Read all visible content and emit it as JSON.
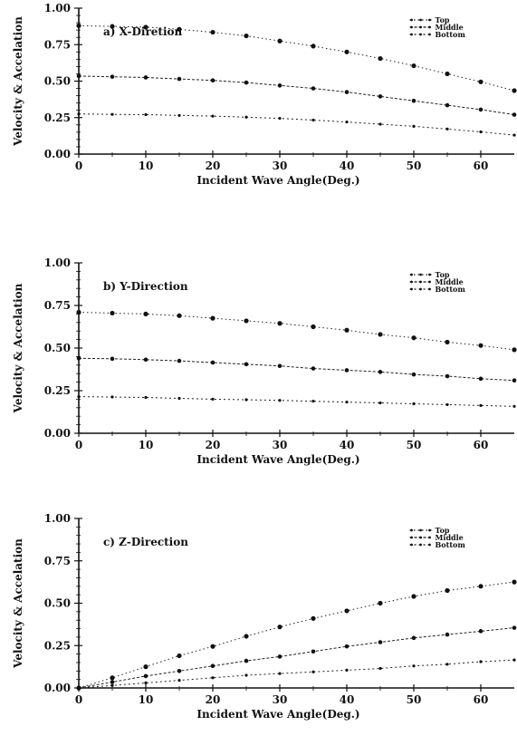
{
  "chart_data": [
    {
      "type": "line",
      "title": "a) X-Diretion",
      "xlabel": "Incident Wave Angle(Deg.)",
      "ylabel": "Velocity & Accelation",
      "xlim": [
        0,
        65
      ],
      "ylim": [
        0,
        1
      ],
      "xticks": [
        0,
        10,
        20,
        30,
        40,
        50,
        60
      ],
      "xtick_labels": [
        "0",
        "10",
        "20",
        "30",
        "40",
        "50",
        "60"
      ],
      "yticks": [
        0,
        0.25,
        0.5,
        0.75,
        1.0
      ],
      "ytick_labels": [
        "0.00",
        "0.25",
        "0.50",
        "0.75",
        "1.00"
      ],
      "grid": false,
      "legend_position": "top-right",
      "x": [
        0,
        5,
        10,
        15,
        20,
        25,
        30,
        35,
        40,
        45,
        50,
        55,
        60,
        65
      ],
      "series": [
        {
          "name": "Top",
          "values": [
            0.88,
            0.875,
            0.87,
            0.855,
            0.835,
            0.81,
            0.775,
            0.74,
            0.7,
            0.655,
            0.605,
            0.55,
            0.495,
            0.435
          ]
        },
        {
          "name": "Middle",
          "values": [
            0.535,
            0.53,
            0.525,
            0.515,
            0.505,
            0.49,
            0.47,
            0.45,
            0.425,
            0.395,
            0.365,
            0.335,
            0.305,
            0.27
          ]
        },
        {
          "name": "Bottom",
          "values": [
            0.275,
            0.272,
            0.27,
            0.265,
            0.26,
            0.253,
            0.245,
            0.233,
            0.22,
            0.205,
            0.19,
            0.172,
            0.152,
            0.13
          ]
        }
      ]
    },
    {
      "type": "line",
      "title": "b) Y-Direction",
      "xlabel": "Incident Wave Angle(Deg.)",
      "ylabel": "Velocity & Accelation",
      "xlim": [
        0,
        65
      ],
      "ylim": [
        0,
        1
      ],
      "xticks": [
        0,
        10,
        20,
        30,
        40,
        50,
        60
      ],
      "xtick_labels": [
        "0",
        "10",
        "20",
        "30",
        "40",
        "50",
        "60"
      ],
      "yticks": [
        0,
        0.25,
        0.5,
        0.75,
        1.0
      ],
      "ytick_labels": [
        "0.00",
        "0.25",
        "0.50",
        "0.75",
        "1.00"
      ],
      "grid": false,
      "legend_position": "top-right",
      "x": [
        0,
        5,
        10,
        15,
        20,
        25,
        30,
        35,
        40,
        45,
        50,
        55,
        60,
        65
      ],
      "series": [
        {
          "name": "Top",
          "values": [
            0.71,
            0.705,
            0.7,
            0.69,
            0.675,
            0.66,
            0.645,
            0.625,
            0.605,
            0.58,
            0.56,
            0.535,
            0.515,
            0.49
          ]
        },
        {
          "name": "Middle",
          "values": [
            0.44,
            0.437,
            0.432,
            0.425,
            0.415,
            0.405,
            0.395,
            0.38,
            0.37,
            0.36,
            0.345,
            0.335,
            0.32,
            0.31
          ]
        },
        {
          "name": "Bottom",
          "values": [
            0.215,
            0.213,
            0.21,
            0.205,
            0.2,
            0.197,
            0.193,
            0.188,
            0.183,
            0.178,
            0.173,
            0.168,
            0.163,
            0.158
          ]
        }
      ]
    },
    {
      "type": "line",
      "title": "c) Z-Direction",
      "xlabel": "Incident Wave Angle(Deg.)",
      "ylabel": "Velocity & Accelation",
      "xlim": [
        0,
        65
      ],
      "ylim": [
        0,
        1
      ],
      "xticks": [
        0,
        10,
        20,
        30,
        40,
        50,
        60
      ],
      "xtick_labels": [
        "0",
        "10",
        "20",
        "30",
        "40",
        "50",
        "60"
      ],
      "yticks": [
        0,
        0.25,
        0.5,
        0.75,
        1.0
      ],
      "ytick_labels": [
        "0.00",
        "0.25",
        "0.50",
        "0.75",
        "1.00"
      ],
      "grid": false,
      "legend_position": "top-right",
      "x": [
        0,
        5,
        10,
        15,
        20,
        25,
        30,
        35,
        40,
        45,
        50,
        55,
        60,
        65
      ],
      "series": [
        {
          "name": "Top",
          "values": [
            0.0,
            0.06,
            0.125,
            0.19,
            0.245,
            0.305,
            0.36,
            0.41,
            0.455,
            0.5,
            0.54,
            0.575,
            0.6,
            0.625
          ]
        },
        {
          "name": "Middle",
          "values": [
            0.0,
            0.035,
            0.07,
            0.1,
            0.13,
            0.16,
            0.185,
            0.215,
            0.245,
            0.27,
            0.295,
            0.315,
            0.335,
            0.355
          ]
        },
        {
          "name": "Bottom",
          "values": [
            0.0,
            0.015,
            0.03,
            0.045,
            0.06,
            0.075,
            0.085,
            0.095,
            0.105,
            0.115,
            0.13,
            0.14,
            0.155,
            0.165
          ]
        }
      ]
    }
  ]
}
